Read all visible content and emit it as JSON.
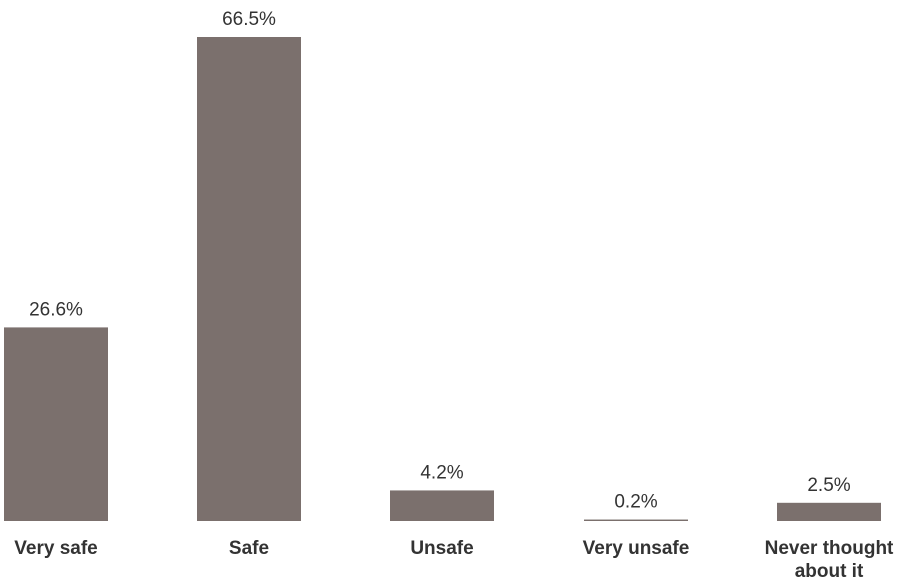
{
  "chart_data": {
    "type": "bar",
    "title": "",
    "xlabel": "",
    "ylabel": "",
    "categories": [
      "Very safe",
      "Safe",
      "Unsafe",
      "Very unsafe",
      "Never thought about it"
    ],
    "category_lines": [
      [
        "Very safe"
      ],
      [
        "Safe"
      ],
      [
        "Unsafe"
      ],
      [
        "Very unsafe"
      ],
      [
        "Never thought",
        "about it"
      ]
    ],
    "values": [
      26.6,
      66.5,
      4.2,
      0.2,
      2.5
    ],
    "value_labels": [
      "26.6%",
      "66.5%",
      "4.2%",
      "0.2%",
      "2.5%"
    ],
    "ylim": [
      0,
      66.5
    ],
    "grid": false,
    "legend": "none",
    "bar_color": "#7b706d"
  }
}
